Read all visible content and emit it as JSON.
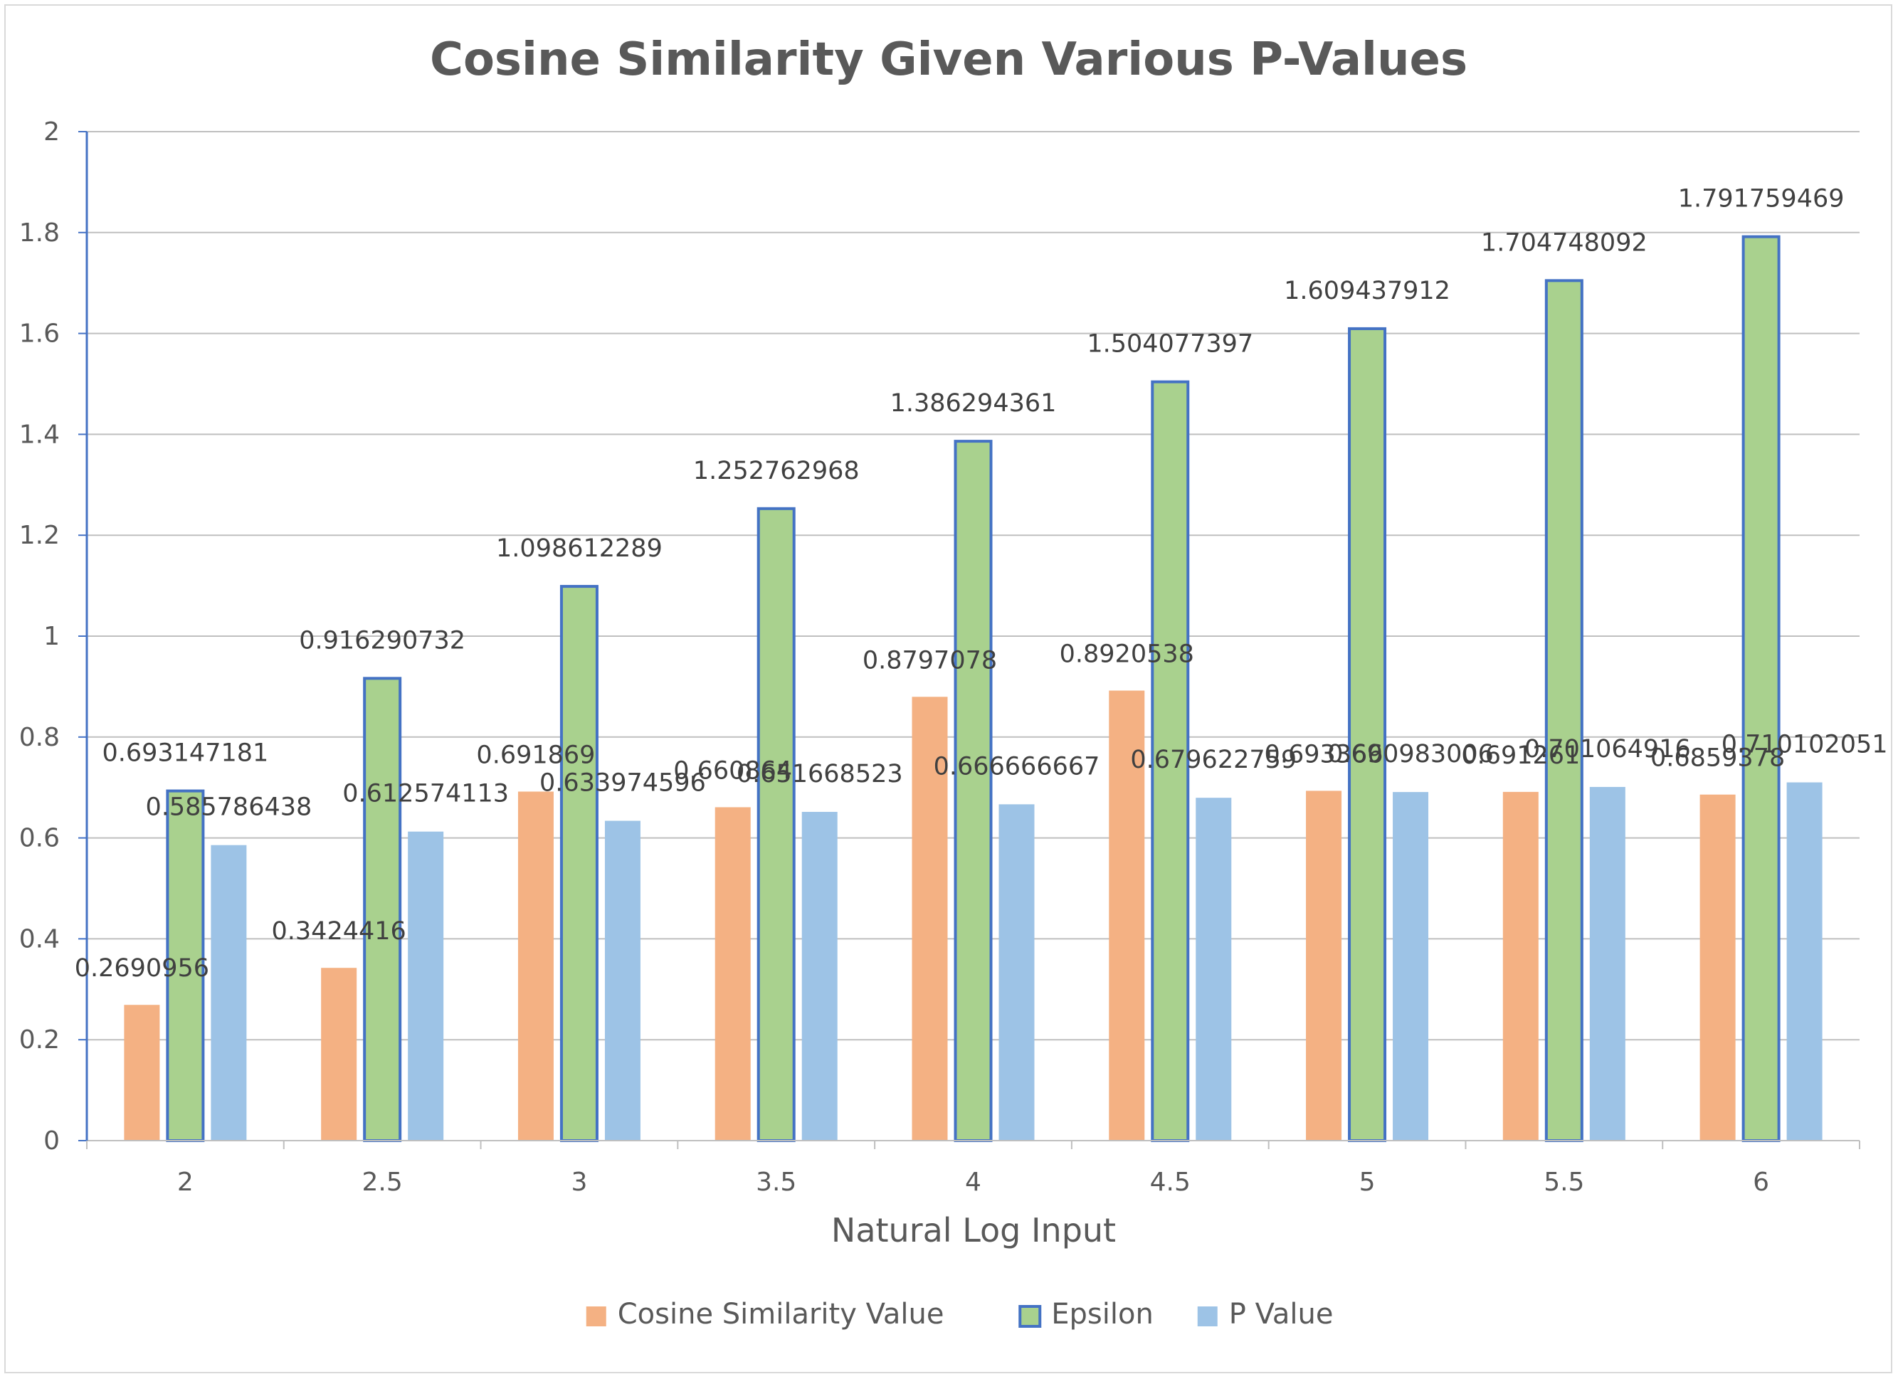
{
  "chart_data": {
    "type": "bar",
    "title": "Cosine Similarity Given Various P-Values",
    "xlabel": "Natural Log Input",
    "ylabel": "",
    "ylim": [
      0,
      2
    ],
    "ytick_step": 0.2,
    "yticks": [
      "0",
      "0.2",
      "0.4",
      "0.6",
      "0.8",
      "1",
      "1.2",
      "1.4",
      "1.6",
      "1.8",
      "2"
    ],
    "grid": true,
    "legend_position": "bottom",
    "categories": [
      "2",
      "2.5",
      "3",
      "3.5",
      "4",
      "4.5",
      "5",
      "5.5",
      "6"
    ],
    "series": [
      {
        "name": "Cosine Similarity Value",
        "color": "#f4b183",
        "values": [
          0.2690956,
          0.3424416,
          0.691869,
          0.660864,
          0.8797078,
          0.8920538,
          0.693366,
          0.691261,
          0.6859378
        ],
        "labels": [
          "0.2690956",
          "0.3424416",
          "0.691869",
          "0.660864",
          "0.8797078",
          "0.8920538",
          "0.693366",
          "0.691261",
          "0.6859378"
        ]
      },
      {
        "name": "Epsilon",
        "color": "#a9d18e",
        "border_color": "#4472c4",
        "values": [
          0.693147181,
          0.916290732,
          1.098612289,
          1.252762968,
          1.386294361,
          1.504077397,
          1.609437912,
          1.704748092,
          1.791759469
        ],
        "labels": [
          "0.693147181",
          "0.916290732",
          "1.098612289",
          "1.252762968",
          "1.386294361",
          "1.504077397",
          "1.609437912",
          "1.704748092",
          "1.791759469"
        ]
      },
      {
        "name": "P Value",
        "color": "#9dc3e6",
        "values": [
          0.585786438,
          0.612574113,
          0.633974596,
          0.651668523,
          0.666666667,
          0.679622759,
          0.690983006,
          0.701064916,
          0.710102051
        ],
        "labels": [
          "0.585786438",
          "0.612574113",
          "0.633974596",
          "0.651668523",
          "0.666666667",
          "0.679622759",
          "0.690983006",
          "0.701064916",
          "0.710102051"
        ]
      }
    ]
  }
}
